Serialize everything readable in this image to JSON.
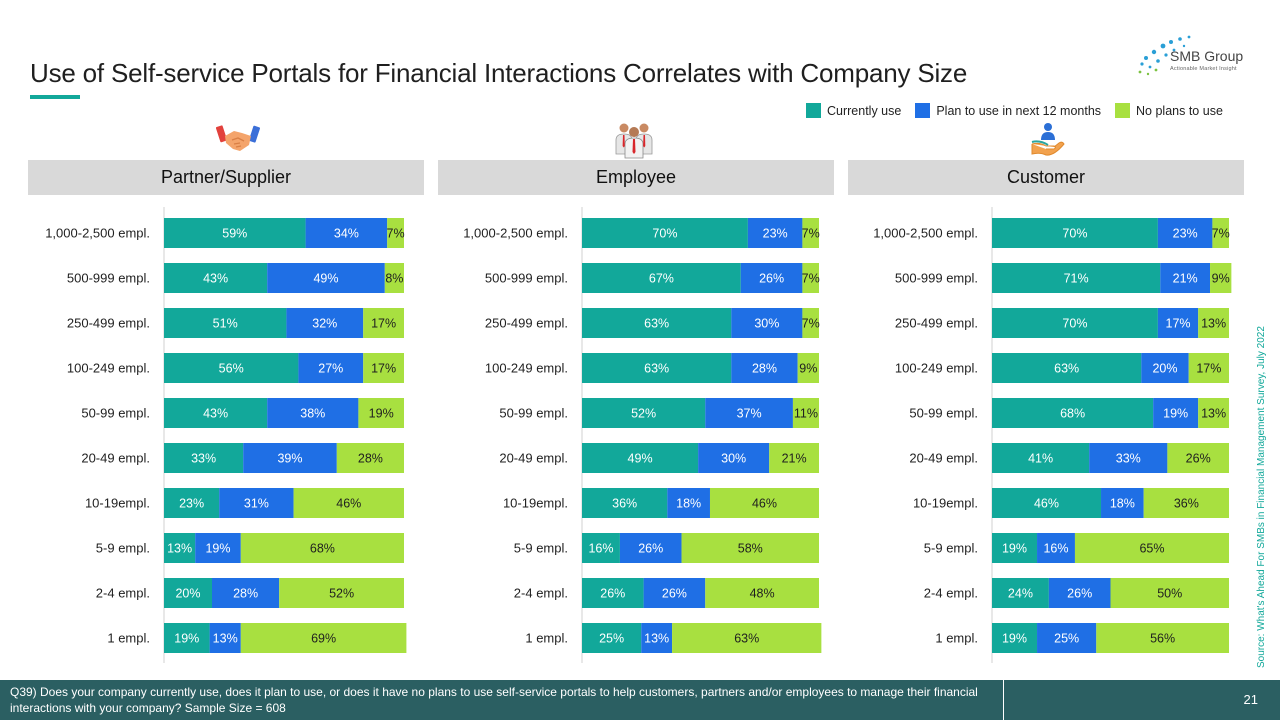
{
  "title": "Use of Self-service Portals for Financial Interactions Correlates with Company Size",
  "logo": {
    "name": "SMB Group",
    "tagline": "Actionable Market Insight"
  },
  "legend": [
    {
      "label": "Currently use",
      "color": "#12a89a"
    },
    {
      "label": "Plan to use in next 12 months",
      "color": "#1f6fe5"
    },
    {
      "label": "No plans to use",
      "color": "#a8e040"
    }
  ],
  "colors": {
    "current": "#12a89a",
    "plan": "#1f6fe5",
    "none": "#a8e040",
    "header_bg": "#d9d9d9",
    "footer_bg": "#2b5f62"
  },
  "source": "Source: What's Ahead For SMBs in Financial Management Survey, July 2022",
  "footer": {
    "question": "Q39) Does your company currently use, does it plan to use, or does it have no plans to use self-service portals to help customers, partners and/or employees to manage their financial interactions with your company? Sample Size = 608",
    "page": "21"
  },
  "chart_data": [
    {
      "type": "bar",
      "title": "Partner/Supplier",
      "icon": "handshake-icon",
      "orientation": "horizontal-stacked-100",
      "categories": [
        "1,000-2,500 empl.",
        "500-999 empl.",
        "250-499 empl.",
        "100-249 empl.",
        "50-99 empl.",
        "20-49 empl.",
        "10-19empl.",
        "5-9 empl.",
        "2-4 empl.",
        "1 empl."
      ],
      "series": [
        {
          "name": "Currently use",
          "values": [
            59,
            43,
            51,
            56,
            43,
            33,
            23,
            13,
            20,
            19
          ]
        },
        {
          "name": "Plan to use in next 12 months",
          "values": [
            34,
            49,
            32,
            27,
            38,
            39,
            31,
            19,
            28,
            13
          ]
        },
        {
          "name": "No plans to use",
          "values": [
            7,
            8,
            17,
            17,
            19,
            28,
            46,
            68,
            52,
            69
          ]
        }
      ],
      "xlim": [
        0,
        100
      ]
    },
    {
      "type": "bar",
      "title": "Employee",
      "icon": "employees-icon",
      "orientation": "horizontal-stacked-100",
      "categories": [
        "1,000-2,500 empl.",
        "500-999 empl.",
        "250-499 empl.",
        "100-249 empl.",
        "50-99 empl.",
        "20-49 empl.",
        "10-19empl.",
        "5-9 empl.",
        "2-4 empl.",
        "1 empl."
      ],
      "series": [
        {
          "name": "Currently use",
          "values": [
            70,
            67,
            63,
            63,
            52,
            49,
            36,
            16,
            26,
            25
          ]
        },
        {
          "name": "Plan to use in next 12 months",
          "values": [
            23,
            26,
            30,
            28,
            37,
            30,
            18,
            26,
            26,
            13
          ]
        },
        {
          "name": "No plans to use",
          "values": [
            7,
            7,
            7,
            9,
            11,
            21,
            46,
            58,
            48,
            63
          ]
        }
      ],
      "xlim": [
        0,
        100
      ]
    },
    {
      "type": "bar",
      "title": "Customer",
      "icon": "customer-hand-icon",
      "orientation": "horizontal-stacked-100",
      "categories": [
        "1,000-2,500 empl.",
        "500-999 empl.",
        "250-499 empl.",
        "100-249 empl.",
        "50-99 empl.",
        "20-49 empl.",
        "10-19empl.",
        "5-9 empl.",
        "2-4 empl.",
        "1 empl."
      ],
      "series": [
        {
          "name": "Currently use",
          "values": [
            70,
            71,
            70,
            63,
            68,
            41,
            46,
            19,
            24,
            19
          ]
        },
        {
          "name": "Plan to use in next 12 months",
          "values": [
            23,
            21,
            17,
            20,
            19,
            33,
            18,
            16,
            26,
            25
          ]
        },
        {
          "name": "No plans to use",
          "values": [
            7,
            9,
            13,
            17,
            13,
            26,
            36,
            65,
            50,
            56
          ]
        }
      ],
      "xlim": [
        0,
        100
      ]
    }
  ]
}
